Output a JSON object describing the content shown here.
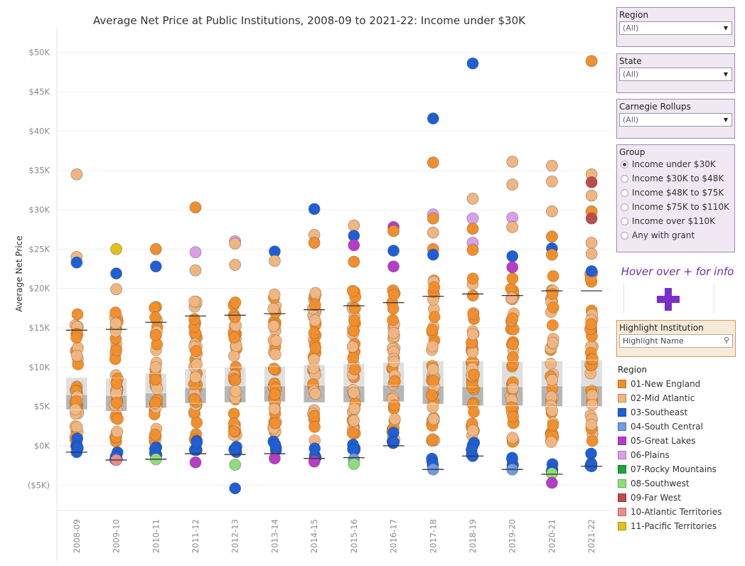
{
  "chart_data": {
    "type": "scatter",
    "title": "Average Net Price at Public Institutions, 2008-09 to 2021-22: Income under $30K",
    "ylabel": "Average Net Price",
    "ylim": [
      -8000,
      51000
    ],
    "y_ticks": [
      {
        "value": 50000,
        "label": "$50K"
      },
      {
        "value": 45000,
        "label": "$45K"
      },
      {
        "value": 40000,
        "label": "$40K"
      },
      {
        "value": 35000,
        "label": "$35K"
      },
      {
        "value": 30000,
        "label": "$30K"
      },
      {
        "value": 25000,
        "label": "$25K"
      },
      {
        "value": 20000,
        "label": "$20K"
      },
      {
        "value": 15000,
        "label": "$15K"
      },
      {
        "value": 10000,
        "label": "$10K"
      },
      {
        "value": 5000,
        "label": "$5K"
      },
      {
        "value": 0,
        "label": "$0K"
      },
      {
        "value": -5000,
        "label": "($5K)"
      }
    ],
    "categories": [
      "2008-09",
      "2009-10",
      "2010-11",
      "2011-12",
      "2012-13",
      "2013-14",
      "2014-15",
      "2015-16",
      "2016-17",
      "2017-18",
      "2018-19",
      "2019-20",
      "2020-21",
      "2021-22"
    ],
    "box_stats": [
      {
        "whisker_low": -800,
        "q1": 4600,
        "median": 6500,
        "q3": 8700,
        "whisker_high": 14700
      },
      {
        "whisker_low": -1800,
        "q1": 4400,
        "median": 6400,
        "q3": 8600,
        "whisker_high": 14800
      },
      {
        "whisker_low": -1700,
        "q1": 4800,
        "median": 6700,
        "q3": 9200,
        "whisker_high": 15700
      },
      {
        "whisker_low": -1000,
        "q1": 5400,
        "median": 7400,
        "q3": 9800,
        "whisker_high": 16500
      },
      {
        "whisker_low": -1100,
        "q1": 5500,
        "median": 7600,
        "q3": 10000,
        "whisker_high": 16600
      },
      {
        "whisker_low": -1000,
        "q1": 5600,
        "median": 7600,
        "q3": 10100,
        "whisker_high": 16800
      },
      {
        "whisker_low": -1600,
        "q1": 5500,
        "median": 7700,
        "q3": 10300,
        "whisker_high": 17300
      },
      {
        "whisker_low": -1500,
        "q1": 5500,
        "median": 7600,
        "q3": 10400,
        "whisker_high": 17800
      },
      {
        "whisker_low": 0,
        "q1": 5600,
        "median": 7700,
        "q3": 10600,
        "whisker_high": 18200
      },
      {
        "whisker_low": -3000,
        "q1": 5300,
        "median": 7600,
        "q3": 10800,
        "whisker_high": 19000
      },
      {
        "whisker_low": -1300,
        "q1": 5100,
        "median": 7500,
        "q3": 10800,
        "whisker_high": 19300
      },
      {
        "whisker_low": -3000,
        "q1": 5100,
        "median": 7500,
        "q3": 10700,
        "whisker_high": 19100
      },
      {
        "whisker_low": -3600,
        "q1": 5000,
        "median": 7600,
        "q3": 10800,
        "whisker_high": 19700
      },
      {
        "whisker_low": -2600,
        "q1": 5000,
        "median": 7600,
        "q3": 10900,
        "whisker_high": 19700
      }
    ],
    "outliers": [
      {
        "x": "2008-09",
        "y": 34500,
        "region": "02-Mid Atlantic"
      },
      {
        "x": "2008-09",
        "y": 24000,
        "region": "02-Mid Atlantic"
      },
      {
        "x": "2008-09",
        "y": 23300,
        "region": "03-Southeast"
      },
      {
        "x": "2008-09",
        "y": -800,
        "region": "03-Southeast"
      },
      {
        "x": "2009-10",
        "y": 25000,
        "region": "11-Pacific Territories"
      },
      {
        "x": "2009-10",
        "y": 21900,
        "region": "03-Southeast"
      },
      {
        "x": "2009-10",
        "y": 19900,
        "region": "02-Mid Atlantic"
      },
      {
        "x": "2009-10",
        "y": -1800,
        "region": "10-Atlantic Territories"
      },
      {
        "x": "2010-11",
        "y": 25000,
        "region": "01-New England"
      },
      {
        "x": "2010-11",
        "y": 22800,
        "region": "03-Southeast"
      },
      {
        "x": "2010-11",
        "y": -1700,
        "region": "08-Southwest"
      },
      {
        "x": "2011-12",
        "y": 30300,
        "region": "01-New England"
      },
      {
        "x": "2011-12",
        "y": 24600,
        "region": "06-Plains"
      },
      {
        "x": "2011-12",
        "y": 22300,
        "region": "02-Mid Atlantic"
      },
      {
        "x": "2011-12",
        "y": -2100,
        "region": "05-Great Lakes"
      },
      {
        "x": "2012-13",
        "y": 26000,
        "region": "06-Plains"
      },
      {
        "x": "2012-13",
        "y": 25700,
        "region": "02-Mid Atlantic"
      },
      {
        "x": "2012-13",
        "y": 23000,
        "region": "02-Mid Atlantic"
      },
      {
        "x": "2012-13",
        "y": -2400,
        "region": "08-Southwest"
      },
      {
        "x": "2012-13",
        "y": -5400,
        "region": "03-Southeast"
      },
      {
        "x": "2013-14",
        "y": 24700,
        "region": "03-Southeast"
      },
      {
        "x": "2013-14",
        "y": 23500,
        "region": "02-Mid Atlantic"
      },
      {
        "x": "2013-14",
        "y": -1600,
        "region": "05-Great Lakes"
      },
      {
        "x": "2014-15",
        "y": 30100,
        "region": "03-Southeast"
      },
      {
        "x": "2014-15",
        "y": 26800,
        "region": "02-Mid Atlantic"
      },
      {
        "x": "2014-15",
        "y": 25800,
        "region": "01-New England"
      },
      {
        "x": "2014-15",
        "y": -2000,
        "region": "05-Great Lakes"
      },
      {
        "x": "2015-16",
        "y": 28000,
        "region": "02-Mid Atlantic"
      },
      {
        "x": "2015-16",
        "y": 26700,
        "region": "03-Southeast"
      },
      {
        "x": "2015-16",
        "y": 25500,
        "region": "05-Great Lakes"
      },
      {
        "x": "2015-16",
        "y": 23400,
        "region": "01-New England"
      },
      {
        "x": "2015-16",
        "y": -1700,
        "region": "04-South Central"
      },
      {
        "x": "2015-16",
        "y": -2300,
        "region": "08-Southwest"
      },
      {
        "x": "2016-17",
        "y": 27800,
        "region": "05-Great Lakes"
      },
      {
        "x": "2016-17",
        "y": 27300,
        "region": "01-New England"
      },
      {
        "x": "2016-17",
        "y": 24800,
        "region": "03-Southeast"
      },
      {
        "x": "2016-17",
        "y": 22800,
        "region": "05-Great Lakes"
      },
      {
        "x": "2017-18",
        "y": 41600,
        "region": "03-Southeast"
      },
      {
        "x": "2017-18",
        "y": 36000,
        "region": "01-New England"
      },
      {
        "x": "2017-18",
        "y": 29400,
        "region": "06-Plains"
      },
      {
        "x": "2017-18",
        "y": 28900,
        "region": "01-New England"
      },
      {
        "x": "2017-18",
        "y": 27100,
        "region": "02-Mid Atlantic"
      },
      {
        "x": "2017-18",
        "y": 25000,
        "region": "01-New England"
      },
      {
        "x": "2017-18",
        "y": 24300,
        "region": "03-Southeast"
      },
      {
        "x": "2017-18",
        "y": -3000,
        "region": "04-South Central"
      },
      {
        "x": "2018-19",
        "y": 48600,
        "region": "03-Southeast"
      },
      {
        "x": "2018-19",
        "y": 31400,
        "region": "02-Mid Atlantic"
      },
      {
        "x": "2018-19",
        "y": 28900,
        "region": "06-Plains"
      },
      {
        "x": "2018-19",
        "y": 27600,
        "region": "01-New England"
      },
      {
        "x": "2018-19",
        "y": 25800,
        "region": "06-Plains"
      },
      {
        "x": "2018-19",
        "y": 24900,
        "region": "01-New England"
      },
      {
        "x": "2018-19",
        "y": -1300,
        "region": "03-Southeast"
      },
      {
        "x": "2019-20",
        "y": 36100,
        "region": "02-Mid Atlantic"
      },
      {
        "x": "2019-20",
        "y": 33200,
        "region": "02-Mid Atlantic"
      },
      {
        "x": "2019-20",
        "y": 29000,
        "region": "06-Plains"
      },
      {
        "x": "2019-20",
        "y": 27800,
        "region": "02-Mid Atlantic"
      },
      {
        "x": "2019-20",
        "y": 24100,
        "region": "03-Southeast"
      },
      {
        "x": "2019-20",
        "y": 22700,
        "region": "05-Great Lakes"
      },
      {
        "x": "2019-20",
        "y": -3000,
        "region": "04-South Central"
      },
      {
        "x": "2020-21",
        "y": 35600,
        "region": "02-Mid Atlantic"
      },
      {
        "x": "2020-21",
        "y": 33600,
        "region": "02-Mid Atlantic"
      },
      {
        "x": "2020-21",
        "y": 29800,
        "region": "02-Mid Atlantic"
      },
      {
        "x": "2020-21",
        "y": 26600,
        "region": "01-New England"
      },
      {
        "x": "2020-21",
        "y": 25100,
        "region": "03-Southeast"
      },
      {
        "x": "2020-21",
        "y": 24300,
        "region": "01-New England"
      },
      {
        "x": "2020-21",
        "y": -3500,
        "region": "08-Southwest"
      },
      {
        "x": "2020-21",
        "y": -4700,
        "region": "05-Great Lakes"
      },
      {
        "x": "2021-22",
        "y": 48900,
        "region": "01-New England"
      },
      {
        "x": "2021-22",
        "y": 34500,
        "region": "02-Mid Atlantic"
      },
      {
        "x": "2021-22",
        "y": 33500,
        "region": "09-Far West"
      },
      {
        "x": "2021-22",
        "y": 31800,
        "region": "02-Mid Atlantic"
      },
      {
        "x": "2021-22",
        "y": 29800,
        "region": "01-New England"
      },
      {
        "x": "2021-22",
        "y": 28900,
        "region": "09-Far West"
      },
      {
        "x": "2021-22",
        "y": 25800,
        "region": "02-Mid Atlantic"
      },
      {
        "x": "2021-22",
        "y": 24400,
        "region": "02-Mid Atlantic"
      },
      {
        "x": "2021-22",
        "y": 22200,
        "region": "03-Southeast"
      },
      {
        "x": "2021-22",
        "y": -2600,
        "region": "03-Southeast"
      }
    ],
    "legend": {
      "title": "Region",
      "placement": "right",
      "items": [
        {
          "label": "01-New England",
          "color": "#f28e2b"
        },
        {
          "label": "02-Mid Atlantic",
          "color": "#f1b580"
        },
        {
          "label": "03-Southeast",
          "color": "#1f5fd6"
        },
        {
          "label": "04-South Central",
          "color": "#6e9ae6"
        },
        {
          "label": "05-Great Lakes",
          "color": "#b73dc8"
        },
        {
          "label": "06-Plains",
          "color": "#d9a0e8"
        },
        {
          "label": "07-Rocky Mountains",
          "color": "#1ba53b"
        },
        {
          "label": "08-Southwest",
          "color": "#8fdc79"
        },
        {
          "label": "09-Far West",
          "color": "#bd4c4c"
        },
        {
          "label": "10-Atlantic Territories",
          "color": "#ec8d8d"
        },
        {
          "label": "11-Pacific Territories",
          "color": "#e0c21a"
        }
      ]
    }
  },
  "filters": {
    "region": {
      "label": "Region",
      "value": "(All)"
    },
    "state": {
      "label": "State",
      "value": "(All)"
    },
    "carnegie": {
      "label": "Carnegie Rollups",
      "value": "(All)"
    }
  },
  "group": {
    "label": "Group",
    "options": [
      {
        "label": "Income under $30K",
        "selected": true
      },
      {
        "label": "Income $30K to $48K",
        "selected": false
      },
      {
        "label": "Income $48K to $75K",
        "selected": false
      },
      {
        "label": "Income $75K to $110K",
        "selected": false
      },
      {
        "label": "Income over $110K",
        "selected": false
      },
      {
        "label": "Any with grant",
        "selected": false
      }
    ]
  },
  "info": {
    "hover_text": "Hover over + for info",
    "plus_icon": "plus-icon"
  },
  "highlight": {
    "label": "Highlight Institution",
    "placeholder": "Highlight Name",
    "icon": "search-icon"
  }
}
